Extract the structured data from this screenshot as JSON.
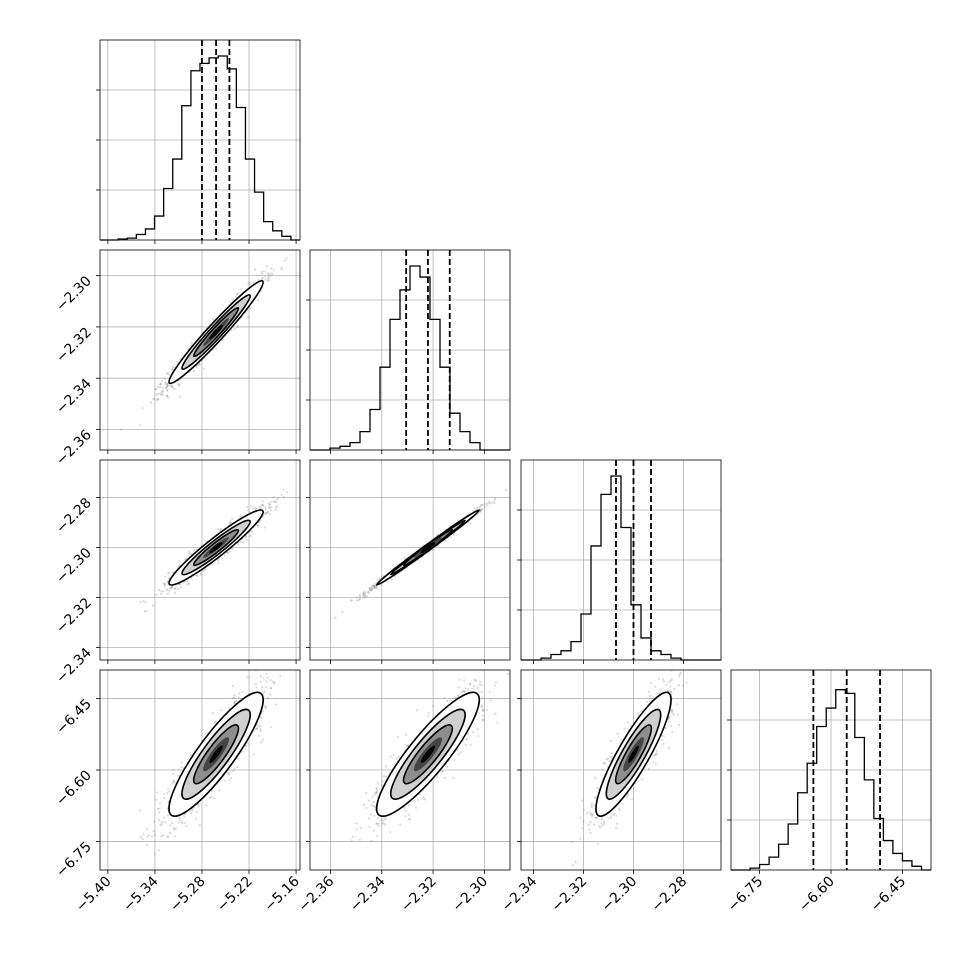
{
  "chart_data": {
    "type": "corner",
    "grid": true,
    "ylim_hist": [
      0,
      1
    ],
    "variables": [
      {
        "axis_range": [
          -5.41,
          -5.155
        ],
        "ticks": [
          -5.4,
          -5.34,
          -5.28,
          -5.22,
          -5.16
        ],
        "tick_labels": [
          "−5.40",
          "−5.34",
          "−5.28",
          "−5.22",
          "−5.16"
        ],
        "quantiles": [
          -5.28,
          -5.262,
          -5.245
        ],
        "hist_bins": {
          "lo": -5.41,
          "hi": -5.155,
          "counts": [
            0.0,
            0.0,
            0.005,
            0.01,
            0.03,
            0.06,
            0.13,
            0.28,
            0.44,
            0.73,
            0.92,
            0.96,
            0.99,
            1.0,
            0.93,
            0.72,
            0.44,
            0.26,
            0.1,
            0.05,
            0.02,
            0.0
          ]
        }
      },
      {
        "axis_range": [
          -2.368,
          -2.29
        ],
        "ticks": [
          -2.36,
          -2.34,
          -2.32,
          -2.3
        ],
        "tick_labels": [
          "−2.36",
          "−2.34",
          "−2.32",
          "−2.30"
        ],
        "quantiles": [
          -2.3305,
          -2.322,
          -2.3135
        ],
        "hist_bins": {
          "lo": -2.368,
          "hi": -2.29,
          "counts": [
            0.0,
            0.0,
            0.01,
            0.02,
            0.04,
            0.1,
            0.22,
            0.45,
            0.71,
            0.87,
            1.0,
            0.94,
            0.71,
            0.45,
            0.2,
            0.1,
            0.04,
            0.0,
            0.0,
            0.0
          ]
        }
      },
      {
        "axis_range": [
          -2.345,
          -2.265
        ],
        "ticks": [
          -2.34,
          -2.32,
          -2.3,
          -2.28
        ],
        "tick_labels": [
          "−2.34",
          "−2.32",
          "−2.30",
          "−2.28"
        ],
        "quantiles": [
          -2.307,
          -2.3,
          -2.293
        ],
        "hist_bins": {
          "lo": -2.345,
          "hi": -2.265,
          "counts": [
            0.0,
            0.0,
            0.01,
            0.03,
            0.05,
            0.1,
            0.25,
            0.62,
            0.9,
            1.0,
            0.72,
            0.3,
            0.12,
            0.05,
            0.03,
            0.01,
            0.0,
            0.0,
            0.0,
            0.0
          ]
        }
      },
      {
        "axis_range": [
          -6.81,
          -6.39
        ],
        "ticks": [
          -6.75,
          -6.6,
          -6.45
        ],
        "tick_labels": [
          "−6.75",
          "−6.60",
          "−6.45"
        ],
        "quantiles": [
          -6.637,
          -6.567,
          -6.497
        ],
        "hist_bins": {
          "lo": -6.81,
          "hi": -6.39,
          "counts": [
            0.0,
            0.0,
            0.01,
            0.03,
            0.07,
            0.14,
            0.25,
            0.42,
            0.58,
            0.78,
            0.88,
            0.98,
            0.96,
            0.72,
            0.49,
            0.28,
            0.16,
            0.09,
            0.05,
            0.02,
            0.0
          ]
        }
      }
    ],
    "pairs": [
      {
        "row": 1,
        "col": 0,
        "corr": 0.97,
        "sd_x": 0.03,
        "sd_y": 0.01,
        "mx": -5.262,
        "my": -2.322
      },
      {
        "row": 2,
        "col": 0,
        "corr": 0.95,
        "sd_x": 0.03,
        "sd_y": 0.0075,
        "mx": -5.262,
        "my": -2.3
      },
      {
        "row": 2,
        "col": 1,
        "corr": 0.995,
        "sd_x": 0.01,
        "sd_y": 0.0075,
        "mx": -2.322,
        "my": -2.3
      },
      {
        "row": 3,
        "col": 0,
        "corr": 0.88,
        "sd_x": 0.03,
        "sd_y": 0.065,
        "mx": -5.262,
        "my": -6.567
      },
      {
        "row": 3,
        "col": 1,
        "corr": 0.88,
        "sd_x": 0.01,
        "sd_y": 0.065,
        "mx": -2.322,
        "my": -6.567
      },
      {
        "row": 3,
        "col": 2,
        "corr": 0.88,
        "sd_x": 0.0075,
        "sd_y": 0.065,
        "mx": -2.3,
        "my": -6.567
      }
    ]
  }
}
